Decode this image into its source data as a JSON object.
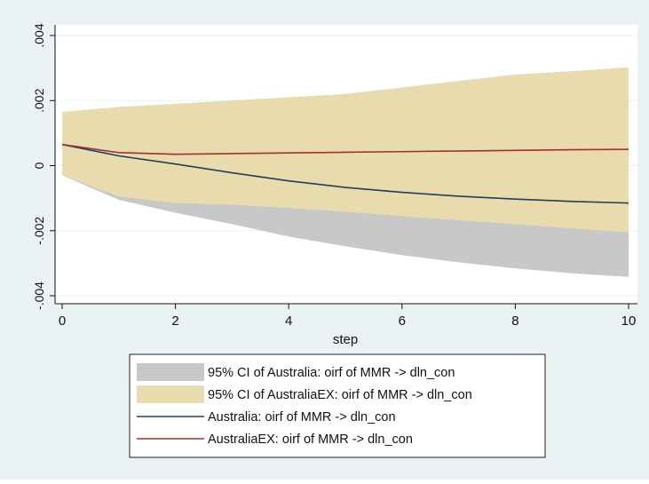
{
  "colors": {
    "background": "#eaf2f3",
    "plot_area": "#ffffff",
    "grid": "#eaf2f3",
    "australia_ci_fill": "#c8c8c8",
    "australiaex_ci_fill": "#e8dcae",
    "australia_line": "#1f3f5a",
    "australiaex_line": "#a0303a"
  },
  "chart_data": {
    "type": "area",
    "xlabel": "step",
    "ylabel": "",
    "xlim": [
      0,
      10
    ],
    "ylim": [
      -0.004,
      0.004
    ],
    "x_ticks": [
      0,
      2,
      4,
      6,
      8,
      10
    ],
    "x_tick_labels": [
      "0",
      "2",
      "4",
      "6",
      "8",
      "10"
    ],
    "y_ticks": [
      -0.004,
      -0.002,
      0,
      0.002,
      0.004
    ],
    "y_tick_labels": [
      "-.004",
      "-.002",
      "0",
      ".002",
      ".004"
    ],
    "grid": true,
    "legend_position": "bottom",
    "x": [
      0,
      1,
      2,
      3,
      4,
      5,
      6,
      7,
      8,
      9,
      10
    ],
    "bands": [
      {
        "name": "95% CI of Australia: oirf of MMR -> dln_con",
        "lower": [
          -0.0003,
          -0.00105,
          -0.00145,
          -0.0018,
          -0.00218,
          -0.00248,
          -0.00275,
          -0.00297,
          -0.00316,
          -0.00331,
          -0.00342
        ],
        "upper": [
          0.00165,
          0.0018,
          0.0019,
          0.002,
          0.0021,
          0.0022,
          0.0024,
          0.0026,
          0.0028,
          0.0029,
          0.00302
        ]
      },
      {
        "name": "95% CI of AustraliaEX: oirf of MMR -> dln_con",
        "lower": [
          -0.0003,
          -0.00095,
          -0.00115,
          -0.0012,
          -0.0013,
          -0.00142,
          -0.00155,
          -0.00168,
          -0.0018,
          -0.00193,
          -0.00205
        ],
        "upper": [
          0.00165,
          0.0018,
          0.0019,
          0.002,
          0.0021,
          0.0022,
          0.0024,
          0.0026,
          0.0028,
          0.0029,
          0.00302
        ]
      }
    ],
    "series": [
      {
        "name": "Australia: oirf of MMR -> dln_con",
        "values": [
          0.00065,
          0.0003,
          5e-05,
          -0.00022,
          -0.00047,
          -0.00067,
          -0.00082,
          -0.00094,
          -0.00103,
          -0.0011,
          -0.00115
        ]
      },
      {
        "name": "AustraliaEX: oirf of MMR -> dln_con",
        "values": [
          0.00065,
          0.0004,
          0.00035,
          0.00037,
          0.00039,
          0.00041,
          0.00043,
          0.00045,
          0.00047,
          0.00049,
          0.0005
        ]
      }
    ]
  }
}
